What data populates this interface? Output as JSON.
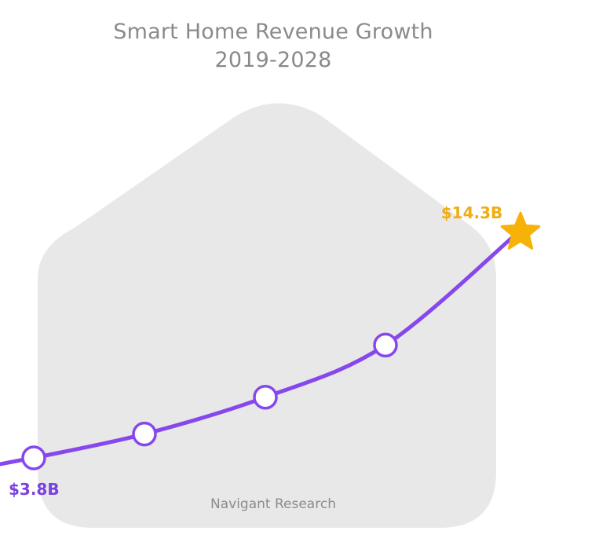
{
  "chart_data": {
    "type": "line",
    "title": "Smart Home Revenue Growth",
    "subtitle": "2019-2028",
    "series": [
      {
        "values": [
          3.8,
          4.9,
          6.6,
          9.0,
          14.3
        ]
      }
    ],
    "annotations": {
      "start_label": "$3.8B",
      "end_label": "$14.3B"
    },
    "source": "Navigant Research",
    "colors": {
      "line": "#8647ed",
      "marker_fill": "#ffffff",
      "star": "#f7b20a",
      "end_label": "#f0ac10",
      "start_label": "#7b40e0",
      "house": "#e8e8e9",
      "title": "#8a8a8a"
    },
    "grid": false
  }
}
